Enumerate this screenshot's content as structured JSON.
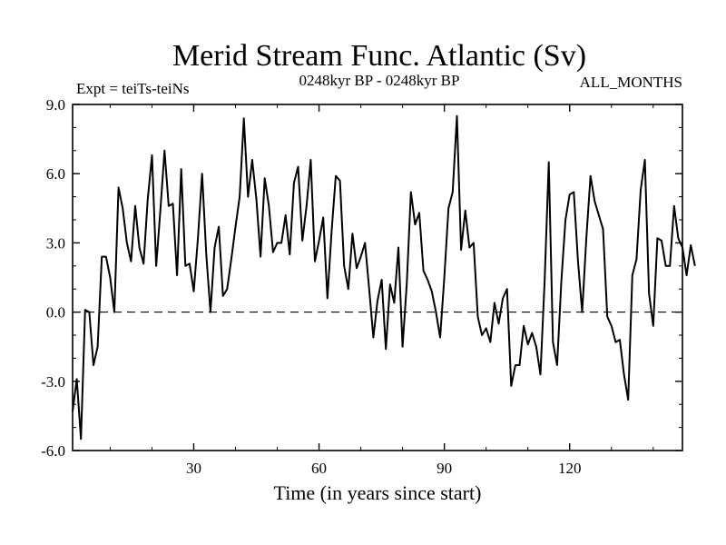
{
  "chart_data": {
    "type": "line",
    "title": "Merid Stream Func. Atlantic (Sv)",
    "subtitle_left": "Expt = teiTs-teiNs",
    "subtitle_center": "0248kyr BP - 0248kyr BP",
    "subtitle_right": "ALL_MONTHS",
    "xlabel": "Time (in years since start)",
    "ylabel": "",
    "xlim": [
      1,
      147
    ],
    "ylim": [
      -6,
      9
    ],
    "xticks": [
      30,
      60,
      90,
      120
    ],
    "yticks": [
      -6,
      -3,
      0,
      3,
      6,
      9
    ],
    "ytick_labels": [
      "-6.0",
      "-3.0",
      "0.0",
      "3.0",
      "6.0",
      "9.0"
    ],
    "reference_line": {
      "y": 0,
      "style": "dashed"
    },
    "color": "#000000",
    "x_start": 1,
    "x_step": 1,
    "series": [
      {
        "name": "teiTs-teiNs",
        "values": [
          -4.3,
          -2.9,
          -5.5,
          0.1,
          0.0,
          -2.3,
          -1.5,
          2.4,
          2.4,
          1.5,
          0.0,
          5.4,
          4.5,
          3.0,
          2.2,
          4.6,
          2.8,
          2.1,
          4.9,
          6.8,
          2.0,
          4.4,
          7.0,
          4.6,
          4.7,
          1.6,
          6.2,
          2.0,
          2.1,
          0.9,
          3.2,
          6.0,
          2.5,
          0.0,
          2.8,
          3.7,
          0.7,
          1.0,
          2.3,
          3.7,
          5.0,
          8.4,
          5.0,
          6.6,
          4.9,
          2.4,
          5.8,
          4.6,
          2.6,
          3.0,
          3.0,
          4.2,
          2.5,
          5.6,
          6.3,
          3.1,
          4.6,
          6.6,
          2.2,
          3.1,
          4.1,
          0.6,
          3.5,
          5.9,
          5.7,
          2.0,
          1.0,
          3.4,
          1.9,
          2.4,
          3.0,
          1.0,
          -1.1,
          0.5,
          1.4,
          -1.6,
          1.2,
          0.4,
          2.8,
          -1.5,
          1.2,
          5.2,
          3.8,
          4.3,
          1.8,
          1.4,
          0.9,
          0.0,
          -1.1,
          1.5,
          4.5,
          5.2,
          8.5,
          2.7,
          4.4,
          2.8,
          3.0,
          -0.2,
          -1.0,
          -0.7,
          -1.3,
          0.4,
          -0.5,
          0.6,
          1.0,
          -3.2,
          -2.3,
          -2.3,
          -0.6,
          -1.4,
          -0.9,
          -1.5,
          -2.7,
          1.3,
          6.5,
          -1.3,
          -2.3,
          1.3,
          4.0,
          5.1,
          5.2,
          2.2,
          0.0,
          3.2,
          5.9,
          4.8,
          4.2,
          3.6,
          -0.2,
          -0.6,
          -1.3,
          -1.2,
          -2.7,
          -3.8,
          1.6,
          2.3,
          5.3,
          6.6,
          0.8,
          -0.6,
          3.2,
          3.1,
          2.0,
          2.0,
          4.6,
          3.2,
          2.8,
          1.6,
          2.9,
          2.0
        ]
      }
    ]
  }
}
